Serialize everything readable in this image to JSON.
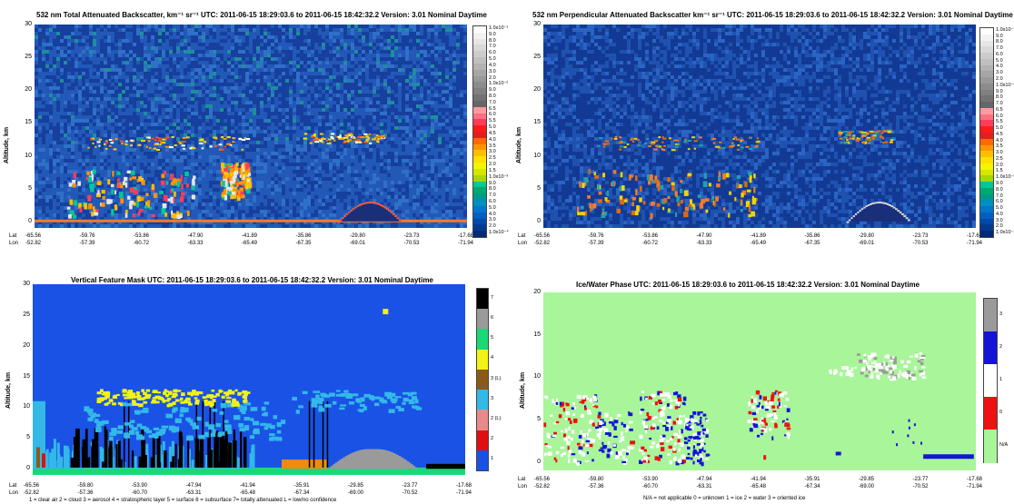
{
  "panels": [
    {
      "id": "tab",
      "title": "532 nm Total Attenuated Backscatter, km⁻¹ sr⁻¹   UTC:  2011-06-15 18:29:03.6  to  2011-06-15 18:42:32.2   Version: 3.01  Nominal  Daytime",
      "ylabel": "Altitude, km",
      "yticks": [
        "30",
        "25",
        "20",
        "15",
        "10",
        "5",
        "0"
      ],
      "lat": [
        "-65.56",
        "-59.76",
        "-53.86",
        "-47.90",
        "-41.89",
        "-35.86",
        "-29.80",
        "-23.73",
        "-17.68"
      ],
      "lon": [
        "-52.82",
        "-57.39",
        "-60.72",
        "-63.33",
        "-65.49",
        "-67.35",
        "-69.01",
        "-70.53",
        "-71.94"
      ],
      "colorbar_labels": [
        "1.0x10⁻¹",
        "9.0",
        "8.0",
        "7.0",
        "6.0",
        "5.0",
        "4.0",
        "3.0",
        "2.0",
        "1.0x10⁻²",
        "9.0",
        "8.0",
        "7.0",
        "6.5",
        "6.0",
        "5.5",
        "5.0",
        "4.5",
        "4.0",
        "3.5",
        "3.0",
        "2.5",
        "2.0",
        "1.5",
        "1.0x10⁻³",
        "9.0",
        "8.0",
        "7.0",
        "6.0",
        "5.0",
        "4.0",
        "3.0",
        "2.0",
        "1.0x10⁻⁴"
      ]
    },
    {
      "id": "perp",
      "title": "532 nm Perpendicular Attenuated Backscatter km⁻¹ sr⁻¹   UTC: 2011-06-15 18:29:03.6  to  2011-06-15 18:42:32.2   Version: 3.01  Nominal  Daytime",
      "ylabel": "Altitude, km",
      "yticks": [
        "30",
        "25",
        "20",
        "15",
        "10",
        "5",
        "0"
      ],
      "lat": [
        "-65.56",
        "-59.76",
        "-53.86",
        "-47.90",
        "-41.89",
        "-35.86",
        "-29.80",
        "-23.73",
        "-17.68"
      ],
      "lon": [
        "-52.82",
        "-57.39",
        "-60.72",
        "-63.33",
        "-65.49",
        "-67.35",
        "-69.01",
        "-70.53",
        "-71.94"
      ],
      "colorbar_labels": [
        "1.0x10⁻¹",
        "9.0",
        "8.0",
        "7.0",
        "6.0",
        "5.0",
        "4.0",
        "3.0",
        "2.0",
        "1.0x10⁻²",
        "9.0",
        "8.0",
        "7.0",
        "6.5",
        "6.0",
        "5.5",
        "5.0",
        "4.5",
        "4.0",
        "3.5",
        "3.0",
        "2.5",
        "2.0",
        "1.5",
        "1.0x10⁻³",
        "9.0",
        "8.0",
        "7.0",
        "6.0",
        "5.0",
        "4.0",
        "3.0",
        "2.0",
        "1.0x10⁻⁴"
      ]
    },
    {
      "id": "vfm",
      "title": "Vertical Feature Mask    UTC:  2011-06-15  18:29:03.6  to  2011-06-15  18:42:32.2   Version: 3.01  Nominal  Daytime",
      "ylabel": "Altitude, km",
      "yticks": [
        "30",
        "25",
        "20",
        "15",
        "10",
        "5",
        "0"
      ],
      "lat": [
        "-65.56",
        "-59.80",
        "-53.90",
        "-47.94",
        "-41.94",
        "-35.91",
        "-29.85",
        "-23.77",
        "-17.68"
      ],
      "lon": [
        "-52.82",
        "-57.36",
        "-60.70",
        "-63.31",
        "-65.48",
        "-67.34",
        "-69.00",
        "-70.52",
        "-71.94"
      ],
      "colorbar_labels": [
        "7",
        "6",
        "5",
        "4",
        "3 (L)",
        "3",
        "2 (L)",
        "2",
        "1"
      ],
      "legend": "1 = clear air    2 = cloud    3 = aerosol    4 = stratospheric layer    5 = surface    6 = subsurface    7= totally attenuated    L = low/no confidence"
    },
    {
      "id": "phase",
      "title": "Ice/Water Phase   UTC:  2011-06-15  18:29:03.6  to  2011-06-15  18:42:32.2   Version: 3.01  Nominal  Daytime",
      "ylabel": "Altitude, km",
      "yticks": [
        "20",
        "15",
        "10",
        "5",
        "0"
      ],
      "lat": [
        "-65.56",
        "-59.80",
        "-53.90",
        "-47.94",
        "-41.94",
        "-35.91",
        "-29.85",
        "-23.77",
        "-17.68"
      ],
      "lon": [
        "-52.82",
        "-57.36",
        "-60.70",
        "-63.31",
        "-65.48",
        "-67.34",
        "-69.00",
        "-70.52",
        "-71.94"
      ],
      "colorbar_labels": [
        "3",
        "2",
        "1",
        "0",
        "N/A"
      ],
      "legend": "N/A = not applicable    0 = unknown    1 = ice    2 = water    3 = oriented ice"
    }
  ],
  "chart_data": [
    {
      "type": "heatmap",
      "title": "532 nm Total Attenuated Backscatter, km⁻¹ sr⁻¹",
      "ylabel": "Altitude, km",
      "ylim": [
        -1,
        30
      ],
      "utc_start": "2011-06-15 18:29:03.6",
      "utc_end": "2011-06-15 18:42:32.2",
      "features": [
        {
          "name": "upper cirrus band",
          "lat_range": [
            -59.76,
            -41.89
          ],
          "alt_km": [
            11,
            13
          ]
        },
        {
          "name": "upper cirrus band",
          "lat_range": [
            -35.86,
            -27
          ],
          "alt_km": [
            12,
            13.5
          ]
        },
        {
          "name": "lower cloud",
          "lat_range": [
            -62,
            -47.9
          ],
          "alt_km": [
            1,
            8
          ]
        },
        {
          "name": "lower cloud",
          "lat_range": [
            -45,
            -41.89
          ],
          "alt_km": [
            4,
            9
          ]
        },
        {
          "name": "surface return",
          "lat_range": [
            -65.56,
            -17.68
          ],
          "alt_km": [
            0,
            0
          ]
        },
        {
          "name": "elevated terrain",
          "lat_range": [
            -32,
            -25
          ],
          "alt_km": [
            0,
            3
          ]
        }
      ],
      "colorbar": {
        "scale": "log",
        "range": [
          0.0001,
          0.1
        ]
      }
    },
    {
      "type": "heatmap",
      "title": "532 nm Perpendicular Attenuated Backscatter km⁻¹ sr⁻¹",
      "ylabel": "Altitude, km",
      "ylim": [
        -1,
        30
      ],
      "features": [
        {
          "name": "upper cirrus band",
          "lat_range": [
            -59.76,
            -41.89
          ],
          "alt_km": [
            11,
            13
          ]
        },
        {
          "name": "upper cirrus band",
          "lat_range": [
            -33,
            -27
          ],
          "alt_km": [
            12,
            14
          ]
        },
        {
          "name": "lower cloud",
          "lat_range": [
            -62,
            -41.89
          ],
          "alt_km": [
            1,
            8
          ]
        },
        {
          "name": "elevated terrain",
          "lat_range": [
            -32,
            -25
          ],
          "alt_km": [
            0,
            3
          ]
        }
      ],
      "colorbar": {
        "scale": "log",
        "range": [
          0.0001,
          0.1
        ]
      }
    },
    {
      "type": "heatmap",
      "title": "Vertical Feature Mask",
      "ylabel": "Altitude, km",
      "ylim": [
        -1,
        30
      ],
      "classes": [
        "1 clear air",
        "2 cloud",
        "3 aerosol",
        "4 stratospheric layer",
        "5 surface",
        "6 subsurface",
        "7 totally attenuated"
      ],
      "class_colors": {
        "1": "#1a52e6",
        "2": "#e01010",
        "2 (L)": "#e88a8a",
        "3": "#33b8e8",
        "3 (L)": "#8a5a1a",
        "4": "#f2f214",
        "5": "#18d978",
        "6": "#9a9a9a",
        "7": "#000000"
      }
    },
    {
      "type": "heatmap",
      "title": "Ice/Water Phase",
      "ylabel": "Altitude, km",
      "ylim": [
        -1,
        20
      ],
      "classes": [
        "N/A not applicable",
        "0 unknown",
        "1 ice",
        "2 water",
        "3 oriented ice"
      ],
      "class_colors": {
        "N/A": "#a9f59a",
        "0": "#ee1111",
        "1": "#ffffff",
        "2": "#1414d8",
        "3": "#9a9a9a"
      }
    }
  ]
}
